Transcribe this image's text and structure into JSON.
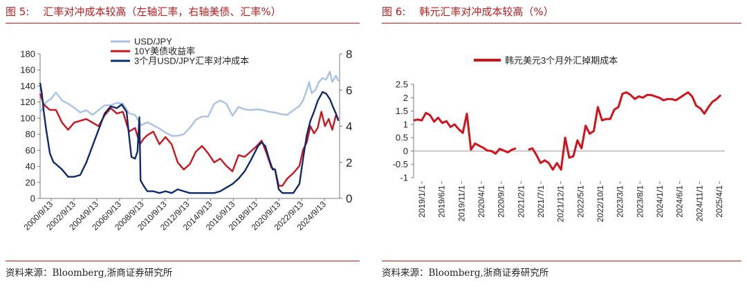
{
  "left": {
    "figure_no": "图 5:",
    "title": "汇率对冲成本较高（左轴汇率，右轴美债、汇率%）",
    "source": "资料来源：Bloomberg,浙商证券研究所"
  },
  "right": {
    "figure_no": "图 6:",
    "title": "韩元汇率对冲成本较高（%）",
    "source": "资料来源：Bloomberg,浙商证券研究所"
  },
  "colors": {
    "accent": "#b41e1e",
    "usdjpy": "#a9c1e3",
    "yield": "#c8141e",
    "hedge": "#0f2a6b",
    "krw": "#d0121b"
  },
  "chart_data": [
    {
      "type": "line",
      "title": "",
      "x_tick_labels": [
        "2000/9/13",
        "2002/9/13",
        "2004/9/13",
        "2006/9/13",
        "2008/9/13",
        "2010/9/13",
        "2012/9/13",
        "2014/9/13",
        "2016/9/13",
        "2018/9/13",
        "2020/9/13",
        "2022/9/13",
        "2024/9/13"
      ],
      "x_range": [
        2000.7,
        2025.3
      ],
      "ylim_left": [
        0,
        180
      ],
      "yticks_left": [
        0,
        20,
        40,
        60,
        80,
        100,
        120,
        140,
        160,
        180
      ],
      "ylim_right": [
        0,
        8
      ],
      "yticks_right": [
        0,
        2,
        4,
        6,
        8
      ],
      "legend_position": "top",
      "series": [
        {
          "name": "USD/JPY",
          "axis": "left",
          "x": [
            2000.7,
            2001.2,
            2001.6,
            2002.0,
            2002.5,
            2003.0,
            2003.5,
            2004.0,
            2004.5,
            2005.0,
            2005.5,
            2006.0,
            2006.5,
            2007.0,
            2007.5,
            2008.0,
            2008.5,
            2009.0,
            2009.5,
            2010.0,
            2010.5,
            2011.0,
            2011.5,
            2012.0,
            2012.5,
            2013.0,
            2013.5,
            2014.0,
            2014.5,
            2015.0,
            2015.5,
            2016.0,
            2016.5,
            2017.0,
            2017.5,
            2018.0,
            2018.5,
            2019.0,
            2019.5,
            2020.0,
            2020.5,
            2021.0,
            2021.5,
            2022.0,
            2022.3,
            2022.6,
            2022.8,
            2023.0,
            2023.3,
            2023.6,
            2023.9,
            2024.2,
            2024.5,
            2024.7,
            2025.0,
            2025.2
          ],
          "y": [
            107,
            120,
            124,
            132,
            122,
            118,
            113,
            107,
            110,
            104,
            110,
            116,
            116,
            119,
            118,
            106,
            104,
            91,
            95,
            91,
            87,
            82,
            78,
            78,
            80,
            88,
            98,
            102,
            102,
            118,
            122,
            118,
            103,
            114,
            111,
            110,
            111,
            110,
            108,
            107,
            105,
            104,
            110,
            115,
            122,
            135,
            145,
            131,
            135,
            145,
            150,
            148,
            158,
            145,
            153,
            146
          ]
        },
        {
          "name": "10Y美债收益率",
          "axis": "right",
          "x": [
            2000.7,
            2001.0,
            2001.5,
            2002.0,
            2002.5,
            2003.0,
            2003.5,
            2004.0,
            2004.5,
            2005.0,
            2005.5,
            2006.0,
            2006.5,
            2007.0,
            2007.5,
            2008.0,
            2008.5,
            2008.9,
            2009.2,
            2009.5,
            2010.0,
            2010.5,
            2011.0,
            2011.5,
            2012.0,
            2012.5,
            2013.0,
            2013.5,
            2014.0,
            2014.5,
            2015.0,
            2015.5,
            2016.0,
            2016.5,
            2017.0,
            2017.5,
            2018.0,
            2018.5,
            2018.9,
            2019.3,
            2019.7,
            2020.0,
            2020.3,
            2020.6,
            2021.0,
            2021.5,
            2022.0,
            2022.3,
            2022.6,
            2022.9,
            2023.2,
            2023.5,
            2023.8,
            2024.1,
            2024.4,
            2024.7,
            2025.0,
            2025.2
          ],
          "y": [
            5.8,
            5.2,
            4.9,
            4.9,
            4.2,
            3.8,
            4.2,
            4.3,
            4.4,
            4.2,
            4.0,
            4.6,
            5.0,
            4.7,
            4.8,
            3.7,
            3.9,
            3.0,
            3.3,
            3.5,
            3.7,
            3.0,
            3.4,
            3.0,
            2.0,
            1.6,
            1.9,
            2.6,
            2.9,
            2.5,
            2.0,
            2.2,
            1.8,
            1.5,
            2.4,
            2.3,
            2.6,
            2.9,
            3.2,
            2.5,
            1.7,
            1.6,
            0.7,
            0.7,
            1.1,
            1.4,
            1.8,
            2.7,
            3.1,
            4.0,
            3.6,
            3.9,
            4.8,
            4.0,
            4.4,
            3.8,
            4.6,
            4.4
          ]
        },
        {
          "name": "3个月USD/JPY汇率对冲成本",
          "axis": "right",
          "x": [
            2000.7,
            2000.85,
            2001.0,
            2001.2,
            2001.5,
            2001.8,
            2002.0,
            2002.5,
            2003.0,
            2003.5,
            2004.0,
            2004.5,
            2005.0,
            2005.5,
            2006.0,
            2006.5,
            2007.0,
            2007.4,
            2007.8,
            2008.0,
            2008.2,
            2008.5,
            2008.7,
            2008.85,
            2008.95,
            2009.2,
            2009.5,
            2010.0,
            2010.5,
            2011.0,
            2011.5,
            2012.0,
            2012.5,
            2013.0,
            2013.5,
            2014.0,
            2014.5,
            2015.0,
            2015.5,
            2016.0,
            2016.5,
            2017.0,
            2017.5,
            2018.0,
            2018.3,
            2018.6,
            2018.9,
            2019.2,
            2019.5,
            2019.8,
            2020.0,
            2020.3,
            2020.6,
            2021.0,
            2021.5,
            2022.0,
            2022.3,
            2022.6,
            2022.9,
            2023.2,
            2023.5,
            2023.9,
            2024.2,
            2024.5,
            2024.8,
            2025.0,
            2025.2
          ],
          "y": [
            6.4,
            5.8,
            4.8,
            3.8,
            2.5,
            2.0,
            1.9,
            1.6,
            1.2,
            1.2,
            1.3,
            2.0,
            2.9,
            3.8,
            4.7,
            5.1,
            5.0,
            5.2,
            4.8,
            3.5,
            2.3,
            2.2,
            2.6,
            4.5,
            1.0,
            0.7,
            0.4,
            0.4,
            0.3,
            0.4,
            0.3,
            0.5,
            0.4,
            0.3,
            0.3,
            0.3,
            0.3,
            0.3,
            0.4,
            0.6,
            0.8,
            1.1,
            1.5,
            2.1,
            2.5,
            2.9,
            3.1,
            2.9,
            2.2,
            1.6,
            1.6,
            0.5,
            0.3,
            0.3,
            0.3,
            0.8,
            2.2,
            3.5,
            4.3,
            4.8,
            5.4,
            5.9,
            5.8,
            5.5,
            5.0,
            4.7,
            4.3
          ]
        }
      ]
    },
    {
      "type": "line",
      "title": "",
      "x_tick_labels": [
        "2019/1/1",
        "2019/6/1",
        "2019/11/1",
        "2020/4/1",
        "2020/9/1",
        "2021/2/1",
        "2021/7/1",
        "2021/12/1",
        "2022/5/1",
        "2022/10/1",
        "2023/3/1",
        "2023/8/1",
        "2024/1/1",
        "2024/6/1",
        "2024/11/1",
        "2025/4/1"
      ],
      "x_range": [
        0,
        76
      ],
      "ylim": [
        -1,
        2.5
      ],
      "yticks": [
        -1,
        -0.5,
        0,
        0.5,
        1,
        1.5,
        2,
        2.5
      ],
      "legend_position": "top",
      "series": [
        {
          "name": "韩元美元3个月外汇掉期成本",
          "segments": [
            {
              "x": [
                0,
                1,
                2,
                3,
                4,
                5,
                6,
                7,
                8,
                9,
                10,
                11,
                12,
                13,
                14,
                15,
                16,
                17,
                18,
                19,
                20,
                21,
                22,
                23,
                24,
                25
              ],
              "y": [
                1.15,
                1.18,
                1.15,
                1.43,
                1.35,
                1.1,
                1.25,
                1.05,
                1.12,
                0.9,
                1.0,
                0.82,
                0.68,
                1.4,
                0.05,
                0.28,
                0.2,
                0.12,
                0.02,
                0.0,
                -0.1,
                0.08,
                0.02,
                -0.05,
                0.05,
                0.1
              ]
            },
            {
              "x": [
                28,
                29,
                30,
                31,
                32,
                33,
                34,
                35,
                36,
                37,
                38,
                39,
                40,
                41,
                42,
                43,
                44,
                45,
                46,
                47,
                48,
                49,
                50,
                51,
                52,
                53,
                54,
                55,
                56,
                57,
                58,
                59,
                60,
                61,
                62,
                63,
                64,
                65,
                66,
                67,
                68,
                69,
                70,
                71,
                72,
                73,
                74,
                75
              ],
              "y": [
                0.05,
                0.1,
                -0.15,
                -0.45,
                -0.35,
                -0.45,
                -0.7,
                -0.45,
                -0.7,
                0.5,
                -0.25,
                -0.2,
                0.4,
                0.1,
                0.95,
                0.65,
                0.75,
                1.65,
                1.15,
                1.2,
                1.2,
                1.55,
                1.65,
                2.15,
                2.2,
                2.1,
                1.95,
                2.05,
                2.0,
                2.1,
                2.1,
                2.05,
                2.0,
                1.9,
                1.95,
                1.95,
                1.9,
                2.0,
                2.1,
                2.2,
                2.05,
                1.7,
                1.6,
                1.4,
                1.65,
                1.85,
                1.95,
                2.1
              ]
            }
          ]
        }
      ]
    }
  ]
}
